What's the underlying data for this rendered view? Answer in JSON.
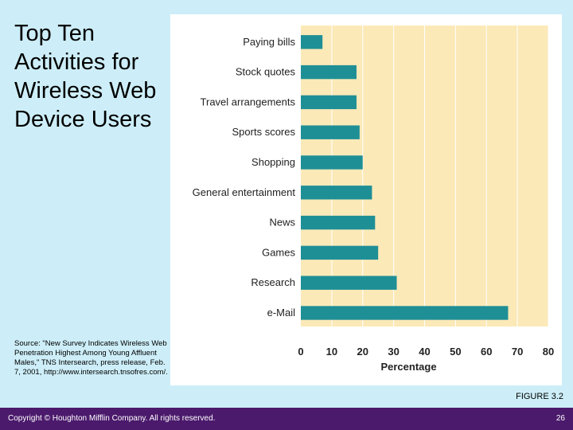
{
  "slide": {
    "title": "Top Ten Activities for Wireless Web Device Users",
    "source": "Source: \"New Survey Indicates Wireless Web Penetration Highest Among Young Affluent Males,\" TNS Intersearch, press release, Feb. 7, 2001, http://www.intersearch.tnsofres.com/.",
    "figure_label": "FIGURE 3.2",
    "copyright": "Copyright © Houghton Mifflin Company. All rights reserved.",
    "page_number": "26"
  },
  "colors": {
    "background": "#cdeef8",
    "plot_background": "#fbe9b8",
    "bar": "#1f8f96",
    "footer": "#4b1a6c"
  },
  "chart_data": {
    "type": "bar",
    "orientation": "horizontal",
    "categories": [
      "Paying bills",
      "Stock quotes",
      "Travel arrangements",
      "Sports scores",
      "Shopping",
      "General entertainment",
      "News",
      "Games",
      "Research",
      "e-Mail"
    ],
    "values": [
      7,
      18,
      18,
      19,
      20,
      23,
      24,
      25,
      31,
      67
    ],
    "xlabel": "Percentage",
    "xlim": [
      0,
      80
    ],
    "xticks": [
      0,
      10,
      20,
      30,
      40,
      50,
      60,
      70,
      80
    ],
    "grid": true,
    "legend": "none"
  }
}
